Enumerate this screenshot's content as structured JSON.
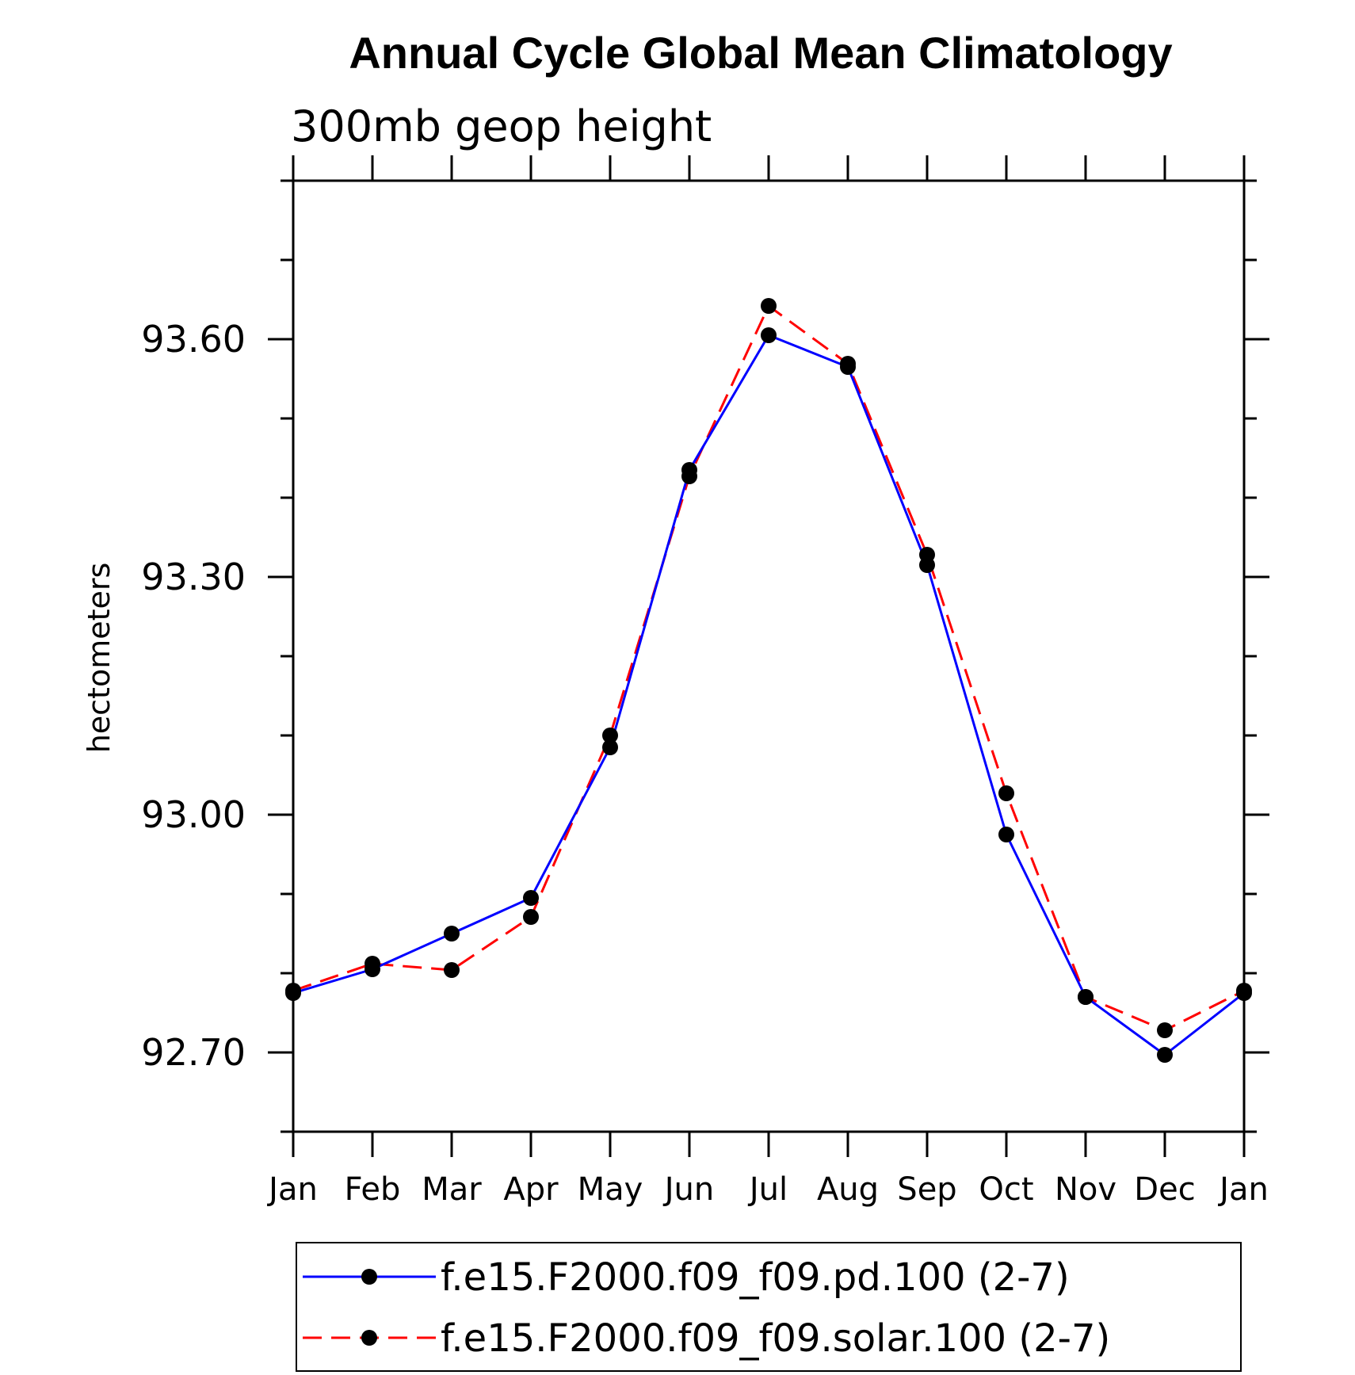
{
  "chart_data": {
    "type": "line",
    "title": "Annual Cycle Global Mean Climatology",
    "subtitle": "300mb geop height",
    "ylabel": "hectometers",
    "xlabel": "",
    "categories": [
      "Jan",
      "Feb",
      "Mar",
      "Apr",
      "May",
      "Jun",
      "Jul",
      "Aug",
      "Sep",
      "Oct",
      "Nov",
      "Dec",
      "Jan"
    ],
    "ylim": [
      92.6,
      93.8
    ],
    "yticks_major": [
      92.7,
      93.0,
      93.3,
      93.6
    ],
    "ytick_labels": [
      "92.70",
      "93.00",
      "93.30",
      "93.60"
    ],
    "ytick_minor_step": 0.1,
    "series": [
      {
        "name": "f.e15.F2000.f09_f09.pd.100 (2-7)",
        "color": "#0000ff",
        "line": "solid",
        "marker": "filled-circle",
        "values": [
          92.775,
          92.805,
          92.85,
          92.895,
          93.085,
          93.435,
          93.605,
          93.565,
          93.315,
          92.975,
          92.77,
          92.697,
          92.775
        ]
      },
      {
        "name": "f.e15.F2000.f09_f09.solar.100 (2-7)",
        "color": "#ff0000",
        "line": "dashed",
        "marker": "filled-circle",
        "values": [
          92.778,
          92.812,
          92.804,
          92.871,
          93.1,
          93.427,
          93.642,
          93.569,
          93.328,
          93.027,
          92.77,
          92.728,
          92.778
        ]
      }
    ],
    "grid": false,
    "legend_position": "bottom"
  }
}
